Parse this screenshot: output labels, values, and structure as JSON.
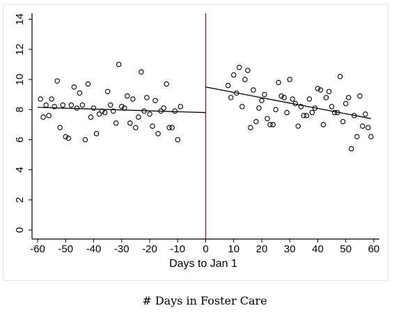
{
  "chart_data": {
    "type": "scatter",
    "title": "",
    "xlabel": "Days to Jan 1",
    "ylabel": "",
    "caption": "# Days in Foster Care",
    "xlim": [
      -62,
      62
    ],
    "ylim": [
      -0.6,
      14.4
    ],
    "xticks": [
      -60,
      -50,
      -40,
      -30,
      -20,
      -10,
      0,
      10,
      20,
      30,
      40,
      50,
      60
    ],
    "yticks": [
      0,
      2,
      4,
      6,
      8,
      10,
      12,
      14
    ],
    "grid": false,
    "legend": "none",
    "cutoff_x": 0,
    "cutoff_color": "#b0103a",
    "series": [
      {
        "points": [
          [
            -59,
            8.7
          ],
          [
            -58,
            7.5
          ],
          [
            -57,
            8.3
          ],
          [
            -56,
            7.6
          ],
          [
            -55,
            8.7
          ],
          [
            -54,
            8.2
          ],
          [
            -53,
            9.9
          ],
          [
            -52,
            6.8
          ],
          [
            -51,
            8.3
          ],
          [
            -50,
            6.2
          ],
          [
            -49,
            6.1
          ],
          [
            -48,
            8.3
          ],
          [
            -47,
            9.5
          ],
          [
            -46,
            8.1
          ],
          [
            -45,
            9.1
          ],
          [
            -44,
            8.3
          ],
          [
            -43,
            6.0
          ],
          [
            -42,
            9.7
          ],
          [
            -41,
            7.5
          ],
          [
            -40,
            8.1
          ],
          [
            -39,
            6.4
          ],
          [
            -38,
            7.7
          ],
          [
            -37,
            7.9
          ],
          [
            -36,
            7.8
          ],
          [
            -35,
            9.2
          ],
          [
            -34,
            8.3
          ],
          [
            -33,
            7.9
          ],
          [
            -32,
            7.1
          ],
          [
            -31,
            11.0
          ],
          [
            -30,
            8.2
          ],
          [
            -29,
            8.1
          ],
          [
            -28,
            8.9
          ],
          [
            -27,
            7.1
          ],
          [
            -26,
            8.7
          ],
          [
            -25,
            6.8
          ],
          [
            -24,
            7.5
          ],
          [
            -23,
            10.5
          ],
          [
            -22,
            7.9
          ],
          [
            -21,
            8.8
          ],
          [
            -20,
            7.7
          ],
          [
            -19,
            6.9
          ],
          [
            -18,
            8.6
          ],
          [
            -17,
            6.4
          ],
          [
            -16,
            7.9
          ],
          [
            -15,
            8.1
          ],
          [
            -14,
            9.7
          ],
          [
            -13,
            6.8
          ],
          [
            -12,
            6.8
          ],
          [
            -11,
            7.9
          ],
          [
            -10,
            6.0
          ],
          [
            -9,
            8.2
          ],
          [
            8,
            9.6
          ],
          [
            9,
            8.8
          ],
          [
            10,
            10.3
          ],
          [
            11,
            9.1
          ],
          [
            12,
            10.8
          ],
          [
            13,
            8.2
          ],
          [
            14,
            10.0
          ],
          [
            15,
            10.6
          ],
          [
            16,
            6.8
          ],
          [
            17,
            9.3
          ],
          [
            18,
            7.2
          ],
          [
            19,
            8.1
          ],
          [
            20,
            8.6
          ],
          [
            21,
            9.0
          ],
          [
            22,
            7.4
          ],
          [
            23,
            7.0
          ],
          [
            24,
            7.0
          ],
          [
            25,
            8.0
          ],
          [
            26,
            9.8
          ],
          [
            27,
            8.9
          ],
          [
            28,
            8.8
          ],
          [
            29,
            7.8
          ],
          [
            30,
            10.0
          ],
          [
            31,
            8.7
          ],
          [
            32,
            8.4
          ],
          [
            33,
            6.9
          ],
          [
            34,
            8.2
          ],
          [
            35,
            7.6
          ],
          [
            36,
            7.6
          ],
          [
            37,
            8.7
          ],
          [
            38,
            7.8
          ],
          [
            39,
            8.1
          ],
          [
            40,
            9.4
          ],
          [
            41,
            9.3
          ],
          [
            42,
            7.0
          ],
          [
            43,
            8.8
          ],
          [
            44,
            9.2
          ],
          [
            45,
            8.2
          ],
          [
            46,
            7.8
          ],
          [
            47,
            7.8
          ],
          [
            48,
            10.2
          ],
          [
            49,
            7.2
          ],
          [
            50,
            8.4
          ],
          [
            51,
            8.8
          ],
          [
            52,
            5.4
          ],
          [
            53,
            7.6
          ],
          [
            54,
            6.2
          ],
          [
            55,
            8.9
          ],
          [
            56,
            6.9
          ],
          [
            57,
            7.7
          ],
          [
            58,
            6.8
          ],
          [
            59,
            6.2
          ]
        ]
      }
    ],
    "fit_lines": [
      {
        "x": [
          -60,
          0
        ],
        "y": [
          8.15,
          7.8
        ]
      },
      {
        "x": [
          0,
          59
        ],
        "y": [
          9.5,
          7.4
        ]
      }
    ]
  }
}
